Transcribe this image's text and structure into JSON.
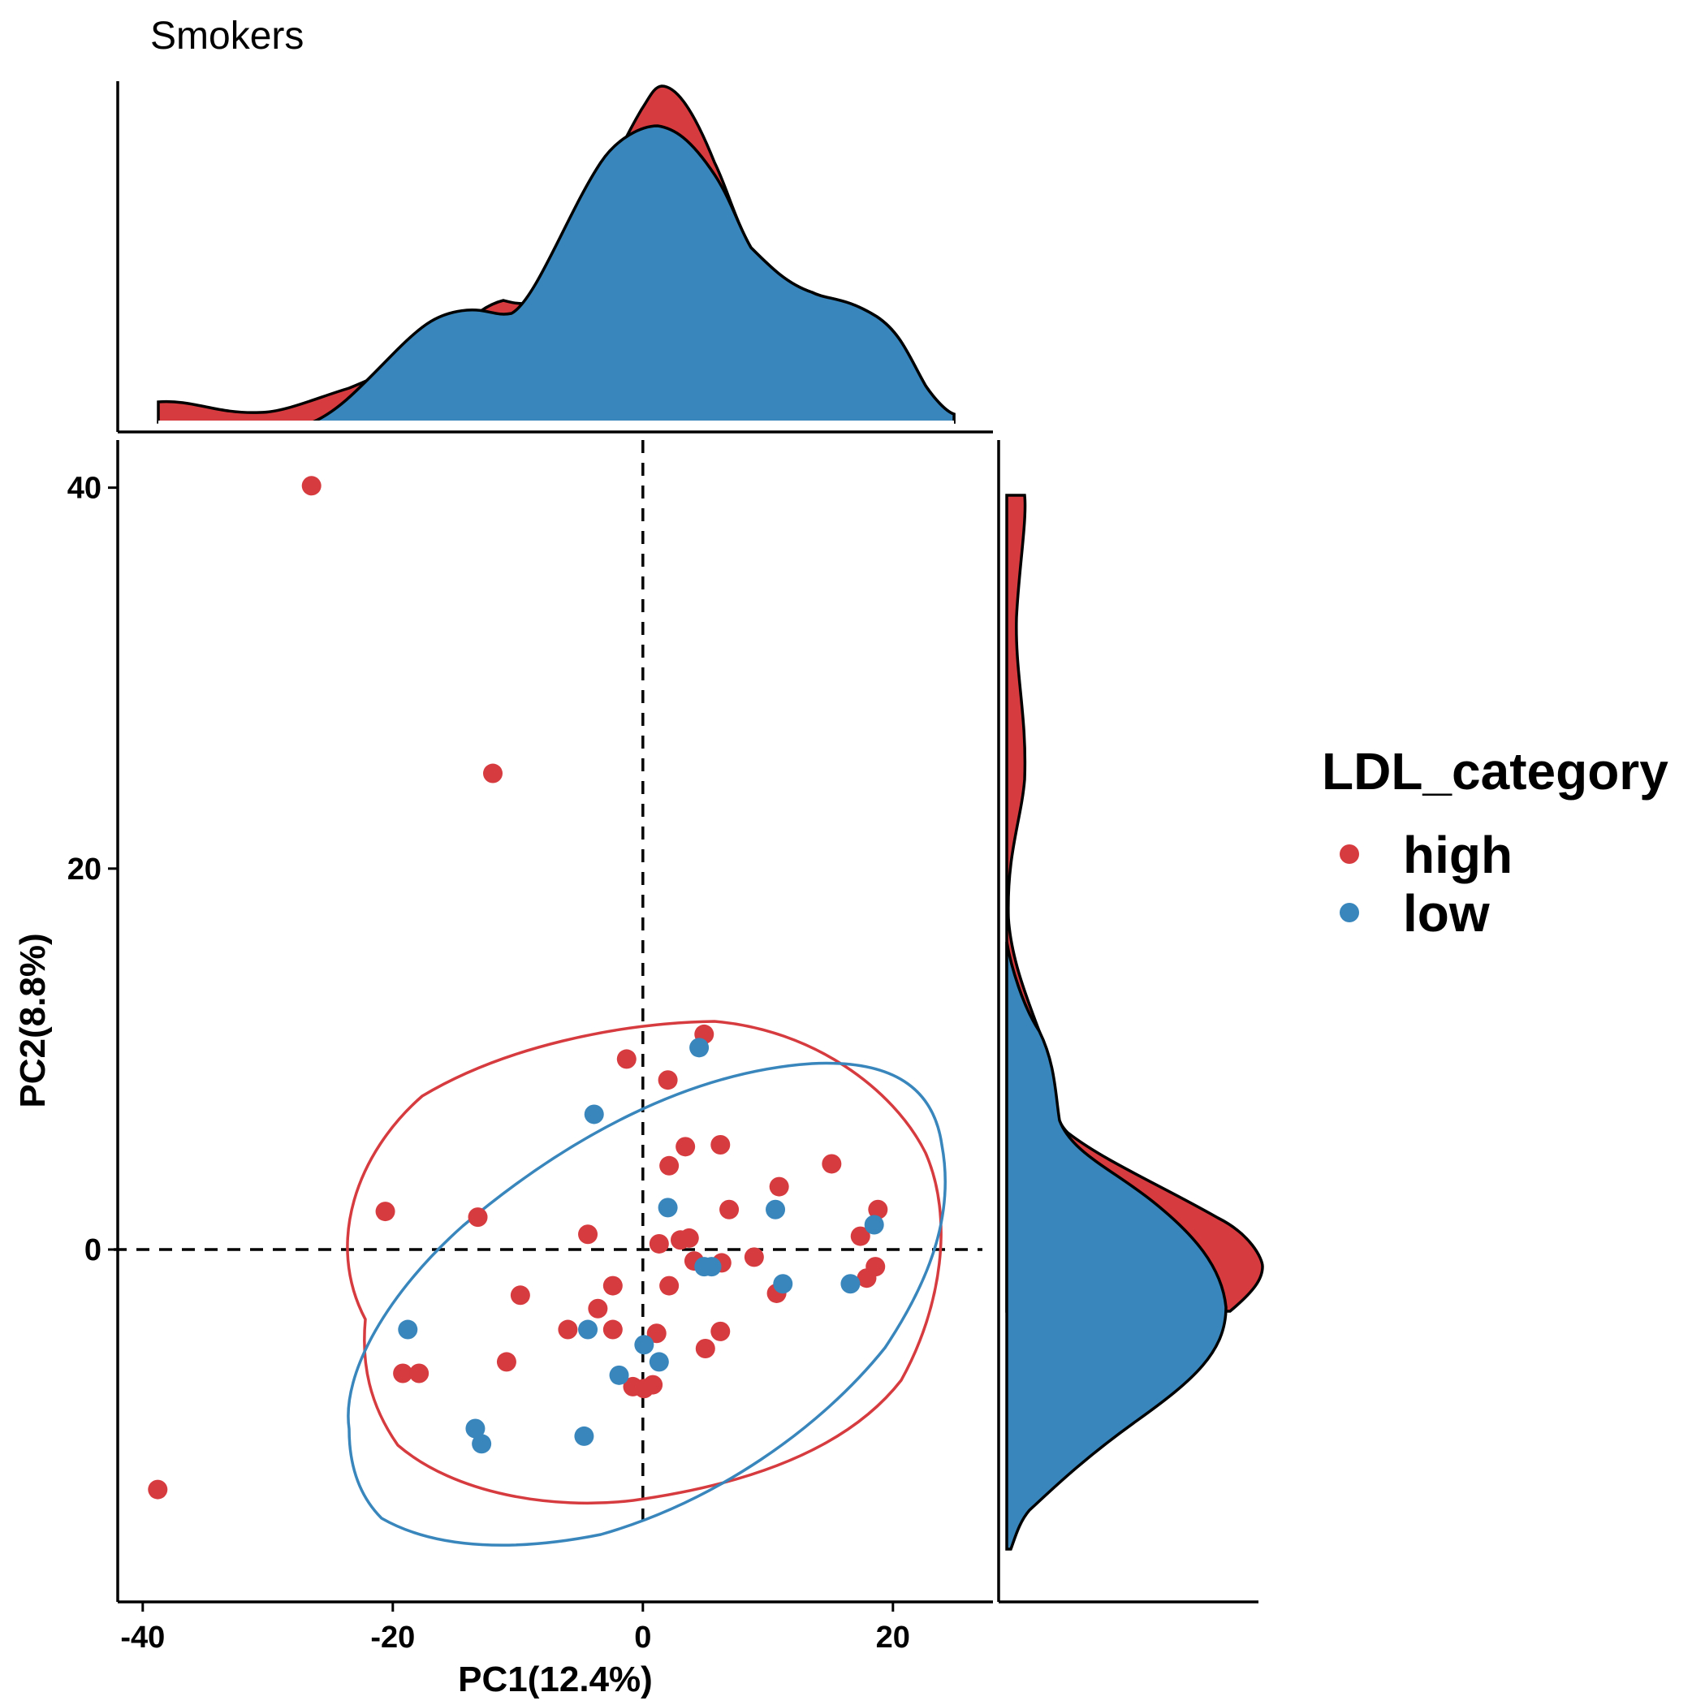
{
  "chart_data": {
    "type": "scatter",
    "title": "Smokers",
    "xlabel": "PC1(12.4%)",
    "ylabel": "PC2(8.8%)",
    "xlim": [
      -42,
      28
    ],
    "ylim": [
      -18.5,
      42.5
    ],
    "xticks": [
      -40,
      -20,
      0,
      20
    ],
    "yticks": [
      0,
      20,
      40
    ],
    "reference_lines": {
      "x": 0,
      "y": 0,
      "style": "dashed"
    },
    "legend": {
      "title": "LDL_category",
      "position": "right"
    },
    "marginal_plots": [
      "top-density",
      "right-density"
    ],
    "colors": {
      "high": "#d63b3f",
      "low": "#3886bc"
    },
    "series": [
      {
        "name": "high",
        "color": "#d63b3f",
        "points": [
          [
            -26.5,
            40.1
          ],
          [
            -12.0,
            25.0
          ],
          [
            -38.8,
            -12.6
          ],
          [
            -20.6,
            2.0
          ],
          [
            -13.2,
            1.7
          ],
          [
            -19.2,
            -6.5
          ],
          [
            -17.9,
            -6.5
          ],
          [
            -10.9,
            -5.9
          ],
          [
            -9.8,
            -2.4
          ],
          [
            -6.0,
            -4.2
          ],
          [
            -4.4,
            0.8
          ],
          [
            -3.6,
            -3.1
          ],
          [
            -2.4,
            -1.9
          ],
          [
            -2.4,
            -4.2
          ],
          [
            -1.3,
            10.0
          ],
          [
            -0.8,
            -7.2
          ],
          [
            0.1,
            -7.3
          ],
          [
            0.8,
            -7.1
          ],
          [
            1.1,
            -4.4
          ],
          [
            1.3,
            0.3
          ],
          [
            2.0,
            8.9
          ],
          [
            2.1,
            4.4
          ],
          [
            2.1,
            -1.9
          ],
          [
            3.0,
            0.5
          ],
          [
            3.4,
            5.4
          ],
          [
            3.7,
            0.6
          ],
          [
            4.1,
            -0.6
          ],
          [
            4.9,
            11.3
          ],
          [
            5.0,
            -5.2
          ],
          [
            6.2,
            5.5
          ],
          [
            6.2,
            -4.3
          ],
          [
            6.3,
            -0.7
          ],
          [
            6.9,
            2.1
          ],
          [
            8.9,
            -0.4
          ],
          [
            10.7,
            -2.3
          ],
          [
            10.9,
            3.3
          ],
          [
            15.1,
            4.5
          ],
          [
            17.4,
            0.7
          ],
          [
            17.9,
            -1.5
          ],
          [
            18.6,
            -0.9
          ],
          [
            18.8,
            2.1
          ]
        ]
      },
      {
        "name": "low",
        "color": "#3886bc",
        "points": [
          [
            -18.8,
            -4.2
          ],
          [
            -13.4,
            -9.4
          ],
          [
            -12.9,
            -10.2
          ],
          [
            -4.7,
            -9.8
          ],
          [
            -4.4,
            -4.2
          ],
          [
            -3.9,
            7.1
          ],
          [
            -1.9,
            -6.6
          ],
          [
            0.1,
            -5.0
          ],
          [
            1.3,
            -5.9
          ],
          [
            2.0,
            2.2
          ],
          [
            4.5,
            10.6
          ],
          [
            4.9,
            -0.9
          ],
          [
            5.5,
            -0.9
          ],
          [
            10.6,
            2.1
          ],
          [
            11.2,
            -1.8
          ],
          [
            16.6,
            -1.8
          ],
          [
            18.5,
            1.3
          ]
        ]
      }
    ]
  }
}
